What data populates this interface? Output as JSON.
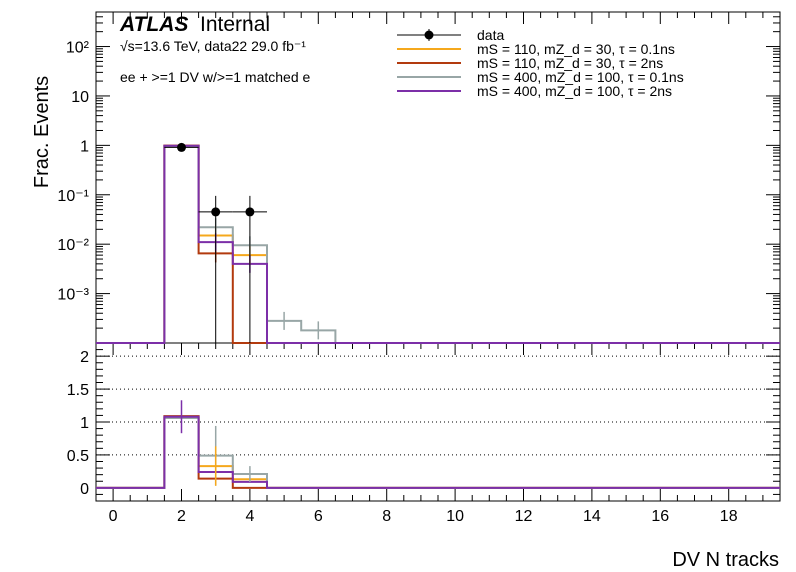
{
  "header": {
    "atlas": "ATLAS",
    "status": "Internal",
    "energy_line": "√s=13.6 TeV, data22 29.0 fb⁻¹",
    "selection": "ee + >=1 DV w/>=1 matched e"
  },
  "legend": [
    {
      "label": "data",
      "color": "#000000",
      "marker": "point"
    },
    {
      "label": "mS = 110, mZ_d = 30, τ = 0.1ns",
      "color": "#f5a81c",
      "marker": "line"
    },
    {
      "label": "mS = 110, mZ_d = 30, τ = 2ns",
      "color": "#b23a0e",
      "marker": "line"
    },
    {
      "label": "mS = 400, mZ_d = 100, τ = 0.1ns",
      "color": "#98a6a6",
      "marker": "line"
    },
    {
      "label": "mS = 400, mZ_d = 100, τ = 2ns",
      "color": "#7c2fa8",
      "marker": "line"
    }
  ],
  "chart_data": [
    {
      "type": "line",
      "subtype": "step-histogram",
      "ylabel": "Frac. Events",
      "yscale": "log",
      "ylim": [
        0.0001,
        500
      ],
      "xlim": [
        -0.5,
        19.5
      ],
      "yticks": [
        {
          "value": 0.001,
          "label": "10⁻³"
        },
        {
          "value": 0.01,
          "label": "10⁻²"
        },
        {
          "value": 0.1,
          "label": "10⁻¹"
        },
        {
          "value": 1,
          "label": "1"
        },
        {
          "value": 10,
          "label": "10"
        },
        {
          "value": 100,
          "label": "10²"
        }
      ],
      "bins": [
        0,
        1,
        2,
        3,
        4,
        5,
        6,
        7,
        8,
        9,
        10,
        11,
        12,
        13,
        14,
        15,
        16,
        17,
        18,
        19
      ],
      "data": {
        "x": [
          2,
          3,
          4
        ],
        "y": [
          0.91,
          0.045,
          0.045
        ],
        "yerr_up": [
          0.12,
          0.05,
          0.05
        ],
        "yerr_down": [
          0.12,
          0.045,
          0.045
        ]
      },
      "series": [
        {
          "name": "mS = 110, mZ_d = 30, τ = 0.1ns",
          "color": "#f5a81c",
          "values": [
            0,
            0,
            0.98,
            0.015,
            0.006,
            0,
            0,
            0,
            0,
            0,
            0,
            0,
            0,
            0,
            0,
            0,
            0,
            0,
            0,
            0
          ]
        },
        {
          "name": "mS = 110, mZ_d = 30, τ = 2ns",
          "color": "#b23a0e",
          "values": [
            0,
            0,
            0.99,
            0.0065,
            0,
            0,
            0,
            0,
            0,
            0,
            0,
            0,
            0,
            0,
            0,
            0,
            0,
            0,
            0,
            0
          ]
        },
        {
          "name": "mS = 400, mZ_d = 100, τ = 0.1ns",
          "color": "#98a6a6",
          "values": [
            0,
            0,
            0.96,
            0.022,
            0.0095,
            0.00028,
            0.00018,
            0,
            0,
            0,
            0,
            0,
            0,
            0,
            0,
            0,
            0,
            0,
            0,
            0
          ]
        },
        {
          "name": "mS = 400, mZ_d = 100, τ = 2ns",
          "color": "#7c2fa8",
          "values": [
            0,
            0,
            0.98,
            0.011,
            0.004,
            0,
            0,
            0,
            0,
            0,
            0,
            0,
            0,
            0,
            0,
            0,
            0,
            0,
            0,
            0
          ]
        }
      ]
    },
    {
      "type": "line",
      "subtype": "ratio",
      "xlabel": "DV N tracks",
      "ylim": [
        -0.2,
        2.2
      ],
      "yticks": [
        0,
        0.5,
        1,
        1.5,
        2
      ],
      "ytick_labels": [
        "0",
        "0.5",
        "1",
        "1.5",
        "2"
      ],
      "xticks": [
        0,
        2,
        4,
        6,
        8,
        10,
        12,
        14,
        16,
        18
      ],
      "xtick_labels": [
        "0",
        "2",
        "4",
        "6",
        "8",
        "10",
        "12",
        "14",
        "16",
        "18"
      ],
      "grid_dotted_at": [
        0.5,
        1,
        1.5,
        2
      ],
      "series": [
        {
          "name": "mS = 110, mZ_d = 30, τ = 0.1ns",
          "color": "#f5a81c",
          "values": [
            0,
            0,
            1.07,
            0.33,
            0.13,
            0,
            0,
            0,
            0,
            0,
            0,
            0,
            0,
            0,
            0,
            0,
            0,
            0,
            0,
            0
          ]
        },
        {
          "name": "mS = 110, mZ_d = 30, τ = 2ns",
          "color": "#b23a0e",
          "values": [
            0,
            0,
            1.09,
            0.14,
            0,
            0,
            0,
            0,
            0,
            0,
            0,
            0,
            0,
            0,
            0,
            0,
            0,
            0,
            0,
            0
          ]
        },
        {
          "name": "mS = 400, mZ_d = 100, τ = 0.1ns",
          "color": "#98a6a6",
          "values": [
            0,
            0,
            1.06,
            0.49,
            0.21,
            0,
            0,
            0,
            0,
            0,
            0,
            0,
            0,
            0,
            0,
            0,
            0,
            0,
            0,
            0
          ]
        },
        {
          "name": "mS = 400, mZ_d = 100, τ = 2ns",
          "color": "#7c2fa8",
          "values": [
            0,
            0,
            1.08,
            0.24,
            0.09,
            0,
            0,
            0,
            0,
            0,
            0,
            0,
            0,
            0,
            0,
            0,
            0,
            0,
            0,
            0
          ]
        }
      ],
      "errors": [
        {
          "x": 2,
          "y": 1.08,
          "up": 0.25,
          "down": 0.25,
          "color": "#7c2fa8"
        },
        {
          "x": 3,
          "y": 0.49,
          "up": 0.45,
          "down": 0.45,
          "color": "#98a6a6"
        },
        {
          "x": 3,
          "y": 0.33,
          "up": 0.3,
          "down": 0.3,
          "color": "#f5a81c"
        },
        {
          "x": 4,
          "y": 0.21,
          "up": 0.12,
          "down": 0.12,
          "color": "#98a6a6"
        }
      ]
    }
  ]
}
